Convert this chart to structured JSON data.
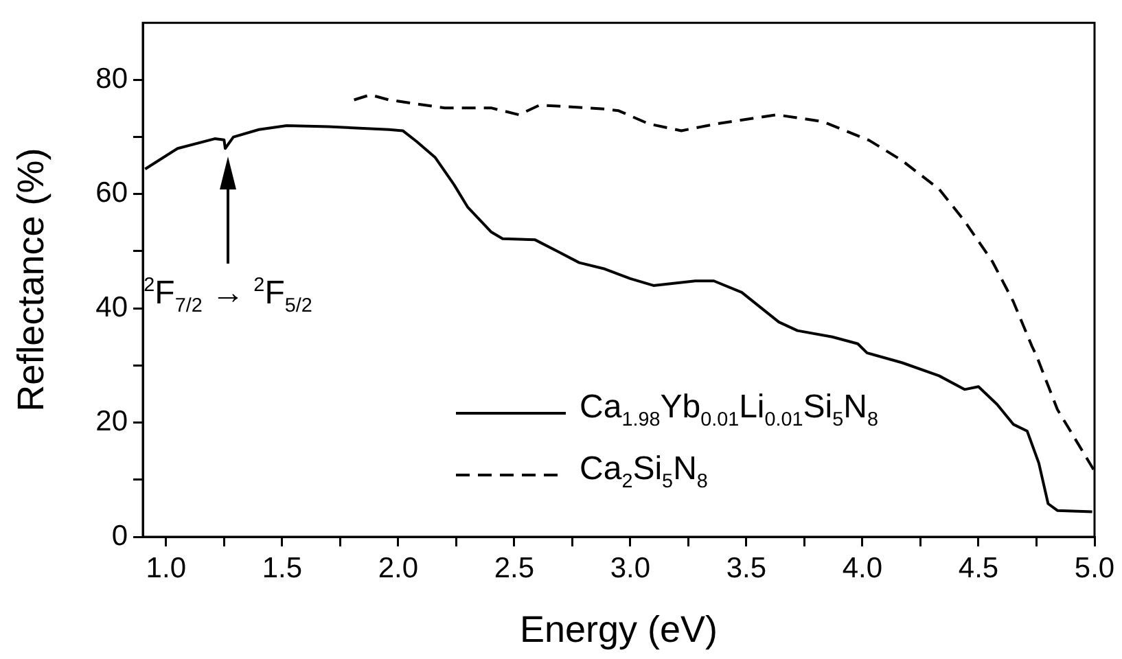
{
  "chart_data": {
    "type": "line",
    "xlabel": "Energy (eV)",
    "ylabel": "Reflectance (%)",
    "xlim": [
      0.9,
      5.0
    ],
    "ylim": [
      0,
      90
    ],
    "xticks": [
      {
        "value": 1,
        "label": "1.0"
      },
      {
        "value": 1.25,
        "label": null
      },
      {
        "value": 1.5,
        "label": "1.5"
      },
      {
        "value": 1.75,
        "label": null
      },
      {
        "value": 2,
        "label": "2.0"
      },
      {
        "value": 2.25,
        "label": null
      },
      {
        "value": 2.5,
        "label": "2.5"
      },
      {
        "value": 2.75,
        "label": null
      },
      {
        "value": 3,
        "label": "3.0"
      },
      {
        "value": 3.25,
        "label": null
      },
      {
        "value": 3.5,
        "label": "3.5"
      },
      {
        "value": 3.75,
        "label": null
      },
      {
        "value": 4,
        "label": "4.0"
      },
      {
        "value": 4.25,
        "label": null
      },
      {
        "value": 4.5,
        "label": "4.5"
      },
      {
        "value": 4.75,
        "label": null
      },
      {
        "value": 5,
        "label": "5.0"
      }
    ],
    "yticks": [
      0,
      {
        "value": 10,
        "label": null
      },
      20,
      {
        "value": 30,
        "label": null
      },
      40,
      {
        "value": 50,
        "label": null
      },
      60,
      {
        "value": 70,
        "label": null
      },
      80
    ],
    "grid": false,
    "legend": "bottom right",
    "marker": "none",
    "annotations": [
      "$^{2}$F$_{7/2}$ → $^{2}$F$_{5/2}$"
    ],
    "series": [
      {
        "name": "Ca$_{1.98}$Yb$_{0.01}$Li$_{0.01}$Si$_{5}$N$_{8}$",
        "color": "#000000",
        "line_style": "solid",
        "x": [
          0.91,
          1.05,
          1.21,
          1.25,
          1.255,
          1.29,
          1.4,
          1.52,
          1.7,
          1.96,
          2.02,
          2.08,
          2.16,
          2.24,
          2.3,
          2.4,
          2.45,
          2.59,
          2.69,
          2.78,
          2.89,
          3.0,
          3.1,
          3.28,
          3.36,
          3.48,
          3.64,
          3.72,
          3.87,
          3.98,
          4.02,
          4.17,
          4.33,
          4.44,
          4.5,
          4.58,
          4.65,
          4.71,
          4.76,
          4.8,
          4.84,
          4.99
        ],
        "values": [
          64.4,
          68,
          69.7,
          69.5,
          68,
          70,
          71.3,
          72,
          71.8,
          71.3,
          71.1,
          69.2,
          66.4,
          61.7,
          57.7,
          53.4,
          52.2,
          52,
          49.9,
          48,
          46.9,
          45.2,
          44,
          44.8,
          44.8,
          42.8,
          37.6,
          36.1,
          35,
          33.8,
          32.2,
          30.5,
          28.2,
          25.8,
          26.3,
          23.2,
          19.7,
          18.5,
          12.9,
          5.8,
          4.6,
          4.4
        ]
      },
      {
        "name": "Ca$_{2}$Si$_{5}$N$_{8}$",
        "color": "#000000",
        "line_style": "dashed",
        "x": [
          1.81,
          1.88,
          1.96,
          2.08,
          2.2,
          2.4,
          2.52,
          2.61,
          2.89,
          2.95,
          3.08,
          3.22,
          3.37,
          3.63,
          3.83,
          4.03,
          4.17,
          4.33,
          4.44,
          4.56,
          4.65,
          4.73,
          4.75,
          4.84,
          5.0
        ],
        "values": [
          76.5,
          77.4,
          76.5,
          75.8,
          75.1,
          75.1,
          73.9,
          75.6,
          74.9,
          74.6,
          72.3,
          71.1,
          72.3,
          73.9,
          72.7,
          69.4,
          65.9,
          60.9,
          55.3,
          48.2,
          41.2,
          33.4,
          31.7,
          22.3,
          11.5
        ]
      }
    ]
  }
}
